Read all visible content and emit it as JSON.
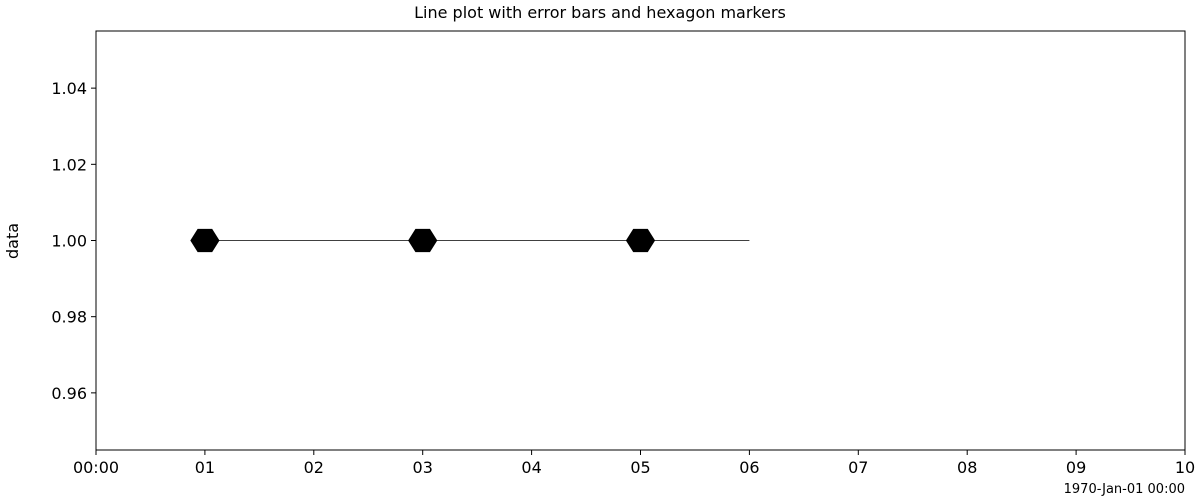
{
  "chart_data": {
    "type": "line",
    "title": "Line plot with error bars and hexagon markers",
    "xlabel": "",
    "ylabel": "data",
    "x_offset_label": "1970-Jan-01 00:00",
    "x_tick_labels": [
      "00:00",
      "01",
      "02",
      "03",
      "04",
      "05",
      "06",
      "07",
      "08",
      "09",
      "10"
    ],
    "y_tick_labels": [
      "0.96",
      "0.98",
      "1.00",
      "1.02",
      "1.04"
    ],
    "y_ticks": [
      0.96,
      0.98,
      1.0,
      1.02,
      1.04
    ],
    "xlim_seconds": [
      0,
      10
    ],
    "ylim": [
      0.945,
      1.055
    ],
    "grid": false,
    "line_color": "#000000",
    "series": [
      {
        "x_seconds": [
          1,
          2,
          3,
          4,
          5,
          6
        ],
        "y": [
          1.0,
          1.0,
          1.0,
          1.0,
          1.0,
          1.0
        ],
        "marker": "hexagon",
        "marker_x_seconds": [
          1,
          3,
          5
        ]
      }
    ]
  }
}
